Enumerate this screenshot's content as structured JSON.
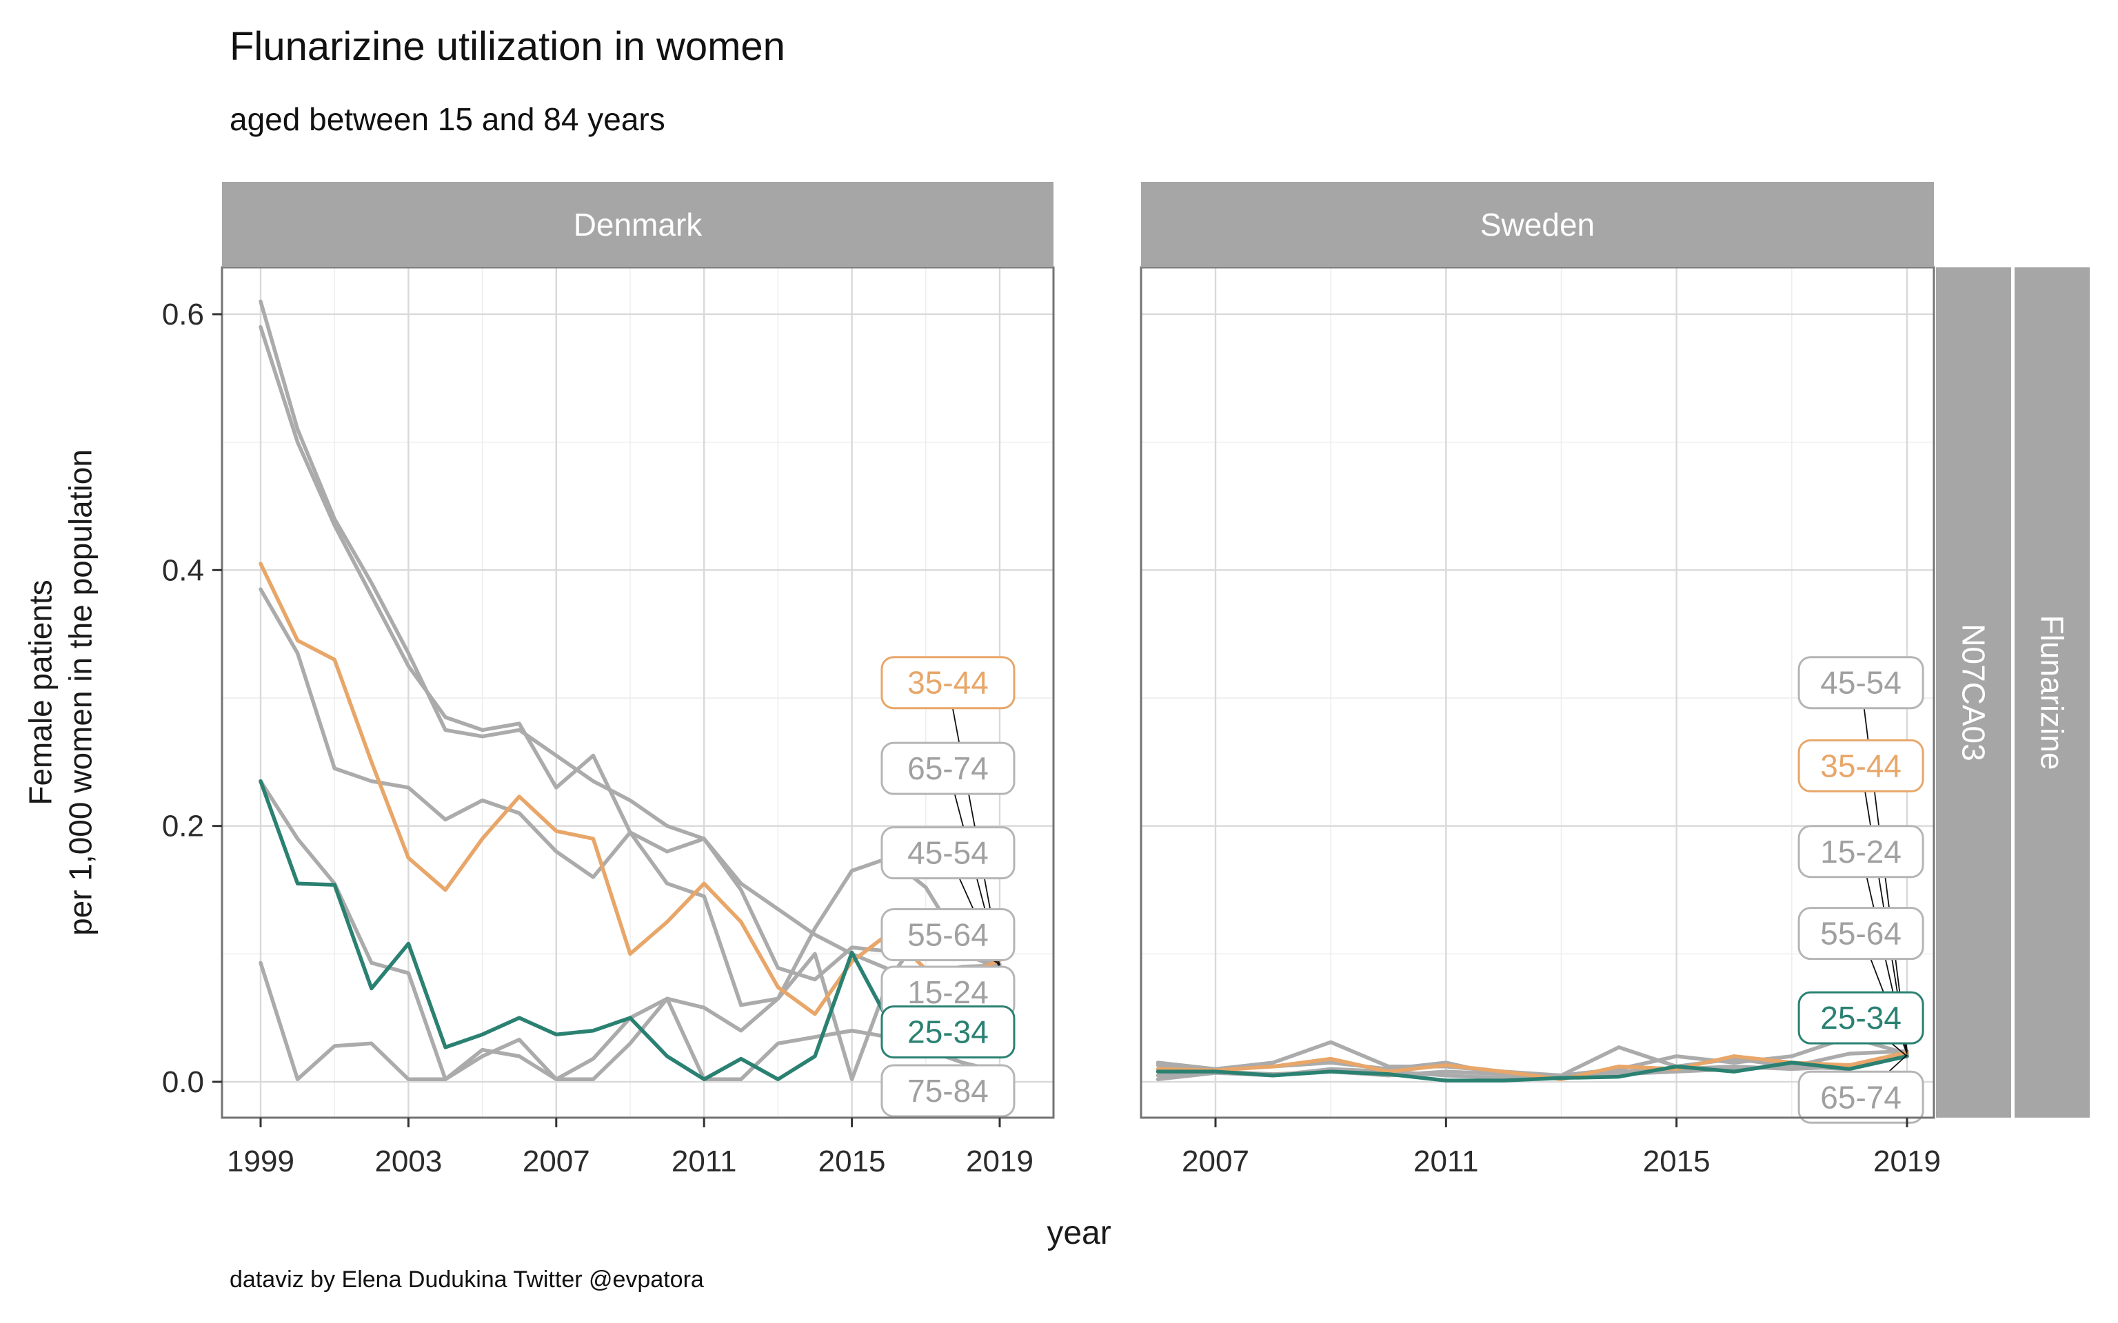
{
  "chart_data": {
    "type": "line",
    "title": "Flunarizine utilization in women",
    "subtitle": "aged between 15 and 84 years",
    "ylabel_line1": "Female patients",
    "ylabel_line2": "per 1,000 women in the population",
    "xlabel": "year",
    "caption": "dataviz by Elena Dudukina Twitter @evpatora",
    "right_strips": [
      "N07CA03",
      "Flunarizine"
    ],
    "yticks": [
      "0.0",
      "0.2",
      "0.4",
      "0.6"
    ],
    "ytick_values": [
      0.0,
      0.2,
      0.4,
      0.6
    ],
    "yminor_values": [
      0.1,
      0.3,
      0.5
    ],
    "ylim": [
      -0.033,
      0.64
    ],
    "grid": true,
    "legend_position": "direct-labels-right",
    "colors": {
      "orange": "#E8A669",
      "teal": "#2A8172",
      "gray_line": "#ABABAB",
      "strip_bg": "#A6A6A6",
      "strip_text": "#FFFFFF",
      "grid_major": "#D9D9D9",
      "grid_minor": "#ECECEC",
      "panel_border": "#737373",
      "axis_text": "#2B2B2B",
      "label_text_gray": "#A0A0A0",
      "label_border_gray": "#B5B5B5",
      "leader": "#111111",
      "label_fill": "#FFFFFF"
    },
    "panels": [
      {
        "name": "Denmark",
        "xticks": [
          1999,
          2003,
          2007,
          2011,
          2015,
          2019
        ],
        "xminor": [
          2001,
          2005,
          2009,
          2013,
          2017
        ],
        "years": [
          1999,
          2000,
          2001,
          2002,
          2003,
          2004,
          2005,
          2006,
          2007,
          2008,
          2009,
          2010,
          2011,
          2012,
          2013,
          2014,
          2015,
          2016,
          2017,
          2018,
          2019
        ],
        "label_x_year": 2017.6,
        "end_year": 2019,
        "series": [
          {
            "label": "75-84",
            "color": "gray",
            "label_y": -0.007,
            "values": [
              0.093,
              0.002,
              0.028,
              0.03,
              0.002,
              0.002,
              0.025,
              0.02,
              0.002,
              0.002,
              0.03,
              0.065,
              0.002,
              0.002,
              0.03,
              0.035,
              0.04,
              0.035,
              0.025,
              0.015,
              0.008
            ]
          },
          {
            "label": "15-24",
            "color": "gray",
            "label_y": 0.07,
            "values": [
              0.235,
              0.19,
              0.155,
              0.093,
              0.085,
              0.002,
              0.02,
              0.033,
              0.002,
              0.018,
              0.05,
              0.065,
              0.058,
              0.04,
              0.065,
              0.12,
              0.165,
              0.175,
              0.152,
              0.105,
              0.085
            ]
          },
          {
            "label": "55-64",
            "color": "gray",
            "label_y": 0.115,
            "values": [
              0.385,
              0.335,
              0.245,
              0.235,
              0.23,
              0.205,
              0.22,
              0.21,
              0.18,
              0.16,
              0.195,
              0.155,
              0.145,
              0.06,
              0.065,
              0.1,
              0.002,
              0.08,
              0.12,
              0.1,
              0.092
            ]
          },
          {
            "label": "45-54",
            "color": "gray",
            "label_y": 0.179,
            "values": [
              0.59,
              0.5,
              0.435,
              0.38,
              0.325,
              0.285,
              0.275,
              0.28,
              0.23,
              0.255,
              0.195,
              0.18,
              0.19,
              0.15,
              0.089,
              0.08,
              0.105,
              0.102,
              0.105,
              0.1,
              0.089
            ]
          },
          {
            "label": "65-74",
            "color": "gray",
            "label_y": 0.245,
            "values": [
              0.61,
              0.51,
              0.44,
              0.39,
              0.335,
              0.275,
              0.27,
              0.275,
              0.255,
              0.235,
              0.22,
              0.2,
              0.19,
              0.155,
              0.135,
              0.115,
              0.1,
              0.088,
              0.085,
              0.09,
              0.091
            ]
          },
          {
            "label": "35-44",
            "color": "orange",
            "label_y": 0.312,
            "values": [
              0.405,
              0.345,
              0.33,
              0.25,
              0.175,
              0.15,
              0.19,
              0.223,
              0.196,
              0.19,
              0.1,
              0.125,
              0.155,
              0.125,
              0.074,
              0.053,
              0.094,
              0.116,
              0.088,
              0.083,
              0.095
            ]
          },
          {
            "label": "25-34",
            "color": "teal",
            "label_y": 0.039,
            "values": [
              0.235,
              0.155,
              0.154,
              0.073,
              0.108,
              0.027,
              0.037,
              0.05,
              0.037,
              0.04,
              0.05,
              0.02,
              0.002,
              0.018,
              0.002,
              0.02,
              0.101,
              0.047,
              0.03,
              0.032,
              0.028
            ]
          }
        ]
      },
      {
        "name": "Sweden",
        "xticks": [
          2007,
          2011,
          2015,
          2019
        ],
        "xminor": [
          2009,
          2013,
          2017
        ],
        "years": [
          2006,
          2007,
          2008,
          2009,
          2010,
          2011,
          2012,
          2013,
          2014,
          2015,
          2016,
          2017,
          2018,
          2019
        ],
        "label_x_year": 2018.2,
        "end_year": 2019,
        "series": [
          {
            "label": "65-74",
            "color": "gray",
            "label_y": -0.012,
            "values": [
              0.002,
              0.007,
              0.005,
              0.01,
              0.008,
              0.005,
              0.003,
              0.004,
              0.006,
              0.008,
              0.01,
              0.012,
              0.01,
              0.021
            ]
          },
          {
            "label": "55-64",
            "color": "gray",
            "label_y": 0.116,
            "values": [
              0.015,
              0.01,
              0.012,
              0.015,
              0.01,
              0.015,
              0.005,
              0.005,
              0.01,
              0.02,
              0.015,
              0.02,
              0.035,
              0.022
            ]
          },
          {
            "label": "15-24",
            "color": "gray",
            "label_y": 0.18,
            "values": [
              0.005,
              0.008,
              0.006,
              0.008,
              0.005,
              0.008,
              0.006,
              0.005,
              0.008,
              0.01,
              0.012,
              0.01,
              0.012,
              0.022
            ]
          },
          {
            "label": "45-54",
            "color": "gray",
            "label_y": 0.312,
            "values": [
              0.013,
              0.01,
              0.015,
              0.031,
              0.012,
              0.012,
              0.008,
              0.005,
              0.027,
              0.012,
              0.018,
              0.012,
              0.022,
              0.024
            ]
          },
          {
            "label": "35-44",
            "color": "orange",
            "label_y": 0.247,
            "values": [
              0.01,
              0.009,
              0.012,
              0.018,
              0.008,
              0.013,
              0.008,
              0.002,
              0.012,
              0.01,
              0.02,
              0.015,
              0.013,
              0.023
            ]
          },
          {
            "label": "25-34",
            "color": "teal",
            "label_y": 0.05,
            "values": [
              0.008,
              0.008,
              0.005,
              0.008,
              0.006,
              0.001,
              0.001,
              0.003,
              0.004,
              0.012,
              0.008,
              0.015,
              0.01,
              0.02
            ]
          }
        ]
      }
    ]
  }
}
